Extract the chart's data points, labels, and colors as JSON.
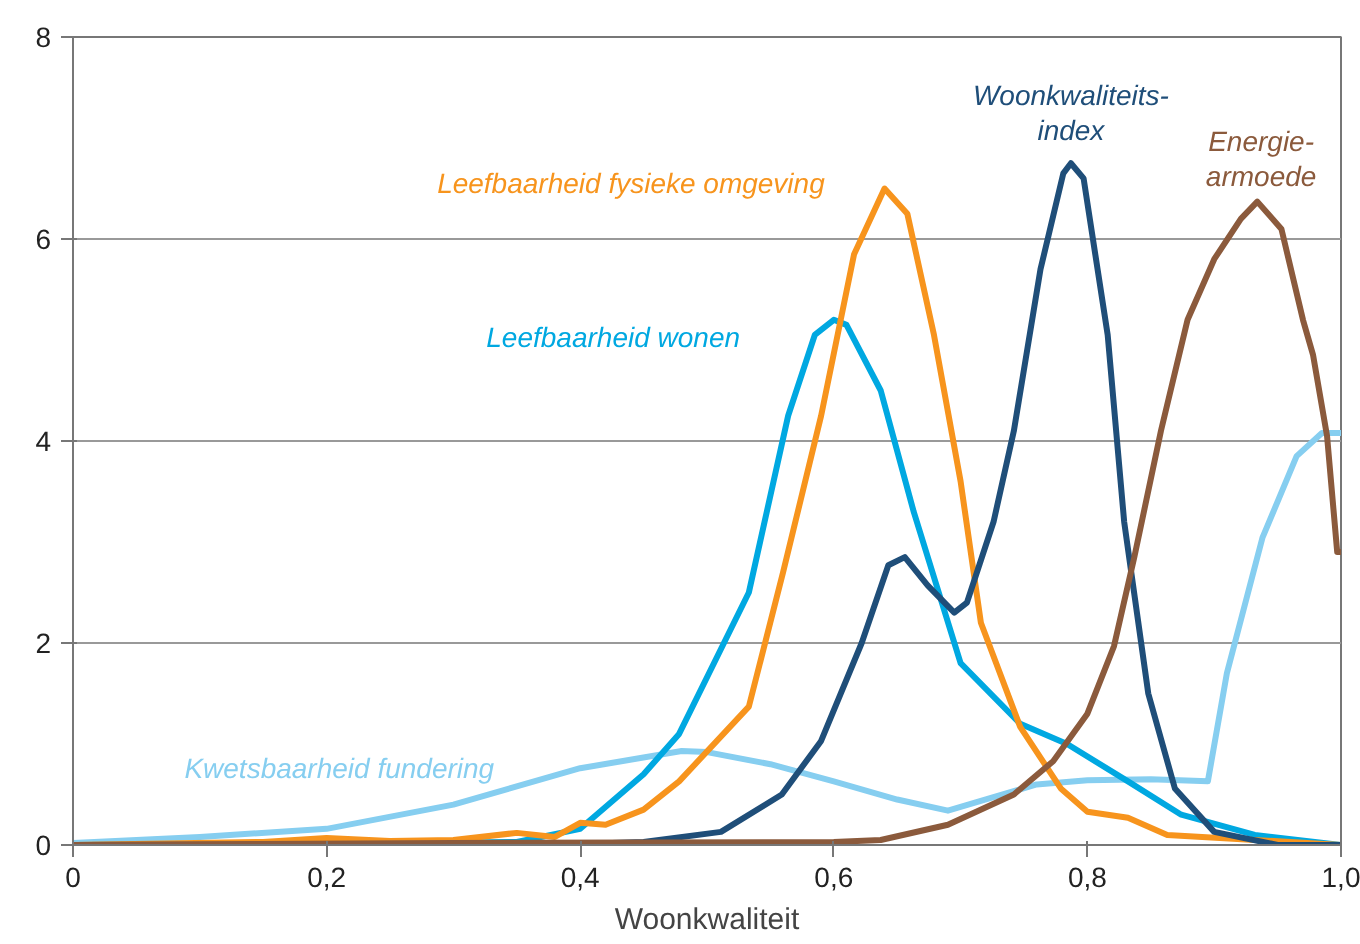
{
  "chart_data": {
    "type": "line",
    "xlabel": "Woonkwaliteit",
    "xlim": [
      0,
      1
    ],
    "ylim": [
      0,
      8
    ],
    "xticks": [
      {
        "value": 0,
        "label": "0"
      },
      {
        "value": 0.2,
        "label": "0,2"
      },
      {
        "value": 0.4,
        "label": "0,4"
      },
      {
        "value": 0.6,
        "label": "0,6"
      },
      {
        "value": 0.8,
        "label": "0,8"
      },
      {
        "value": 1,
        "label": "1,0"
      }
    ],
    "yticks": [
      0,
      2,
      4,
      6,
      8
    ],
    "grid": "y",
    "marker": "none",
    "line_style": "solid",
    "series": [
      {
        "name": "Kwetsbaarheid fundering",
        "color": "#86cef0",
        "x": [
          0,
          0.1,
          0.2,
          0.3,
          0.4,
          0.48,
          0.5,
          0.55,
          0.6,
          0.65,
          0.69,
          0.76,
          0.8,
          0.85,
          0.895,
          0.91,
          0.938,
          0.965,
          0.985,
          1
        ],
        "values": [
          0.02,
          0.08,
          0.16,
          0.4,
          0.76,
          0.93,
          0.92,
          0.8,
          0.63,
          0.45,
          0.34,
          0.6,
          0.64,
          0.65,
          0.63,
          1.7,
          3.04,
          3.85,
          4.08,
          4.08
        ]
      },
      {
        "name": "Leefbaarheid wonen",
        "color": "#00a8e1",
        "x": [
          0,
          0.2,
          0.35,
          0.4,
          0.45,
          0.478,
          0.533,
          0.564,
          0.585,
          0.6,
          0.61,
          0.637,
          0.663,
          0.7,
          0.747,
          0.784,
          0.832,
          0.874,
          0.932,
          1
        ],
        "values": [
          0,
          0.01,
          0.03,
          0.16,
          0.7,
          1.1,
          2.5,
          4.25,
          5.05,
          5.2,
          5.15,
          4.5,
          3.3,
          1.8,
          1.2,
          1.0,
          0.63,
          0.3,
          0.1,
          0
        ]
      },
      {
        "name": "Leefbaarheid fysieke omgeving",
        "color": "#f7941d",
        "x": [
          0,
          0.15,
          0.2,
          0.25,
          0.3,
          0.35,
          0.38,
          0.4,
          0.42,
          0.45,
          0.478,
          0.533,
          0.56,
          0.59,
          0.616,
          0.64,
          0.658,
          0.679,
          0.7,
          0.716,
          0.747,
          0.779,
          0.8,
          0.832,
          0.863,
          1
        ],
        "values": [
          0,
          0.03,
          0.07,
          0.04,
          0.05,
          0.12,
          0.08,
          0.22,
          0.2,
          0.35,
          0.63,
          1.37,
          2.7,
          4.25,
          5.85,
          6.5,
          6.25,
          5.05,
          3.6,
          2.2,
          1.17,
          0.56,
          0.33,
          0.27,
          0.1,
          0
        ]
      },
      {
        "name": "Woonkwaliteits-\nindex",
        "color": "#1f4e79",
        "x": [
          0,
          0.4,
          0.45,
          0.511,
          0.559,
          0.59,
          0.622,
          0.643,
          0.656,
          0.674,
          0.695,
          0.705,
          0.726,
          0.742,
          0.763,
          0.781,
          0.787,
          0.797,
          0.816,
          0.829,
          0.848,
          0.869,
          0.9,
          0.95,
          1
        ],
        "values": [
          0,
          0.01,
          0.03,
          0.13,
          0.5,
          1.03,
          2.0,
          2.77,
          2.85,
          2.57,
          2.3,
          2.4,
          3.2,
          4.1,
          5.7,
          6.65,
          6.75,
          6.6,
          5.05,
          3.2,
          1.5,
          0.56,
          0.13,
          0,
          0
        ]
      },
      {
        "name": "Energie-\narmoede",
        "color": "#8b5a3c",
        "x": [
          0,
          0.3,
          0.6,
          0.637,
          0.69,
          0.742,
          0.773,
          0.8,
          0.821,
          0.837,
          0.858,
          0.879,
          0.9,
          0.921,
          0.934,
          0.953,
          0.97,
          0.978,
          0.989,
          0.997,
          1
        ],
        "values": [
          0,
          0.02,
          0.03,
          0.05,
          0.2,
          0.5,
          0.83,
          1.3,
          1.97,
          2.85,
          4.1,
          5.2,
          5.8,
          6.2,
          6.37,
          6.1,
          5.2,
          4.85,
          4.05,
          2.9,
          2.9
        ]
      }
    ]
  }
}
